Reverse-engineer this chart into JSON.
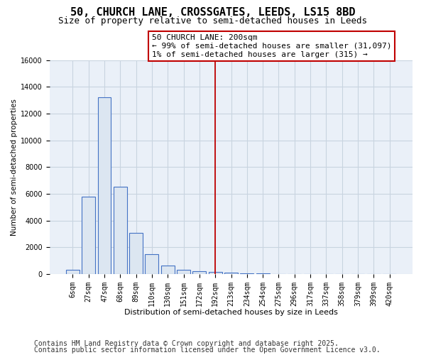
{
  "title1": "50, CHURCH LANE, CROSSGATES, LEEDS, LS15 8BD",
  "title2": "Size of property relative to semi-detached houses in Leeds",
  "xlabel": "Distribution of semi-detached houses by size in Leeds",
  "ylabel": "Number of semi-detached properties",
  "categories": [
    "6sqm",
    "27sqm",
    "47sqm",
    "68sqm",
    "89sqm",
    "110sqm",
    "130sqm",
    "151sqm",
    "172sqm",
    "192sqm",
    "213sqm",
    "234sqm",
    "254sqm",
    "275sqm",
    "296sqm",
    "317sqm",
    "337sqm",
    "358sqm",
    "379sqm",
    "399sqm",
    "420sqm"
  ],
  "values": [
    300,
    5800,
    13200,
    6500,
    3050,
    1500,
    650,
    300,
    200,
    150,
    100,
    50,
    30,
    0,
    0,
    0,
    0,
    0,
    0,
    0,
    0
  ],
  "bar_color": "#dce6f1",
  "bar_edge_color": "#4472c4",
  "vline_x_index": 9,
  "vline_color": "#c00000",
  "annotation_line1": "50 CHURCH LANE: 200sqm",
  "annotation_line2": "← 99% of semi-detached houses are smaller (31,097)",
  "annotation_line3": "1% of semi-detached houses are larger (315) →",
  "annotation_box_color": "#ffffff",
  "annotation_box_edge": "#c00000",
  "ylim": [
    0,
    16000
  ],
  "yticks": [
    0,
    2000,
    4000,
    6000,
    8000,
    10000,
    12000,
    14000,
    16000
  ],
  "footer1": "Contains HM Land Registry data © Crown copyright and database right 2025.",
  "footer2": "Contains public sector information licensed under the Open Government Licence v3.0.",
  "bg_color": "#ffffff",
  "plot_bg_color": "#eaf0f8",
  "title1_fontsize": 11,
  "title2_fontsize": 9,
  "annotation_fontsize": 8,
  "footer_fontsize": 7,
  "grid_color": "#c8d4e0",
  "tick_fontsize": 7,
  "xlabel_fontsize": 8,
  "ylabel_fontsize": 7.5
}
